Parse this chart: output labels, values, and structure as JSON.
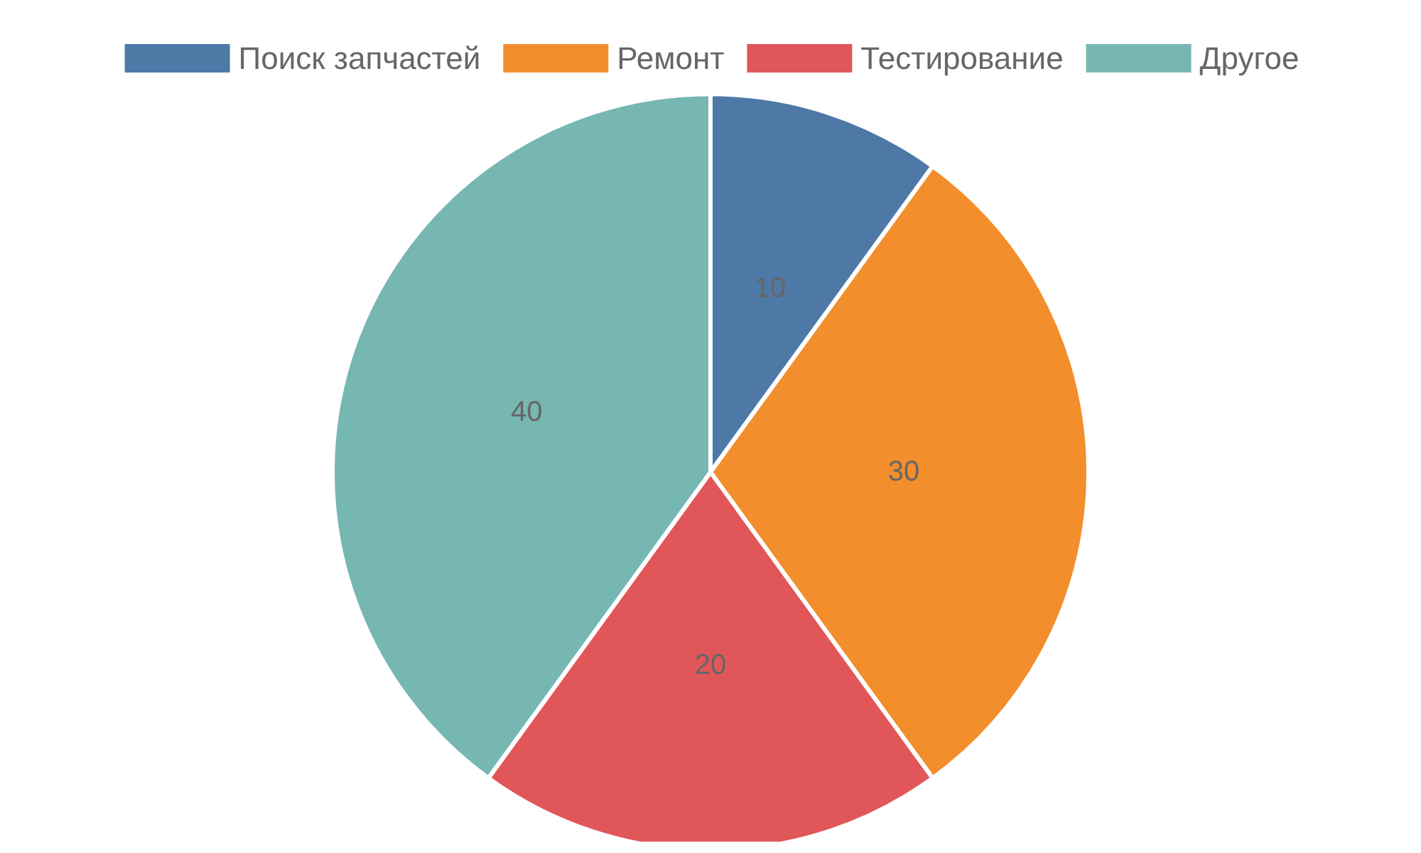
{
  "chart_data": {
    "type": "pie",
    "categories": [
      "Поиск запчастей",
      "Ремонт",
      "Тестирование",
      "Другое"
    ],
    "values": [
      10,
      30,
      20,
      40
    ],
    "colors": [
      "#4e79a7",
      "#f28e2b",
      "#e15759",
      "#76b7b2"
    ],
    "data_labels": true,
    "legend": "top"
  }
}
